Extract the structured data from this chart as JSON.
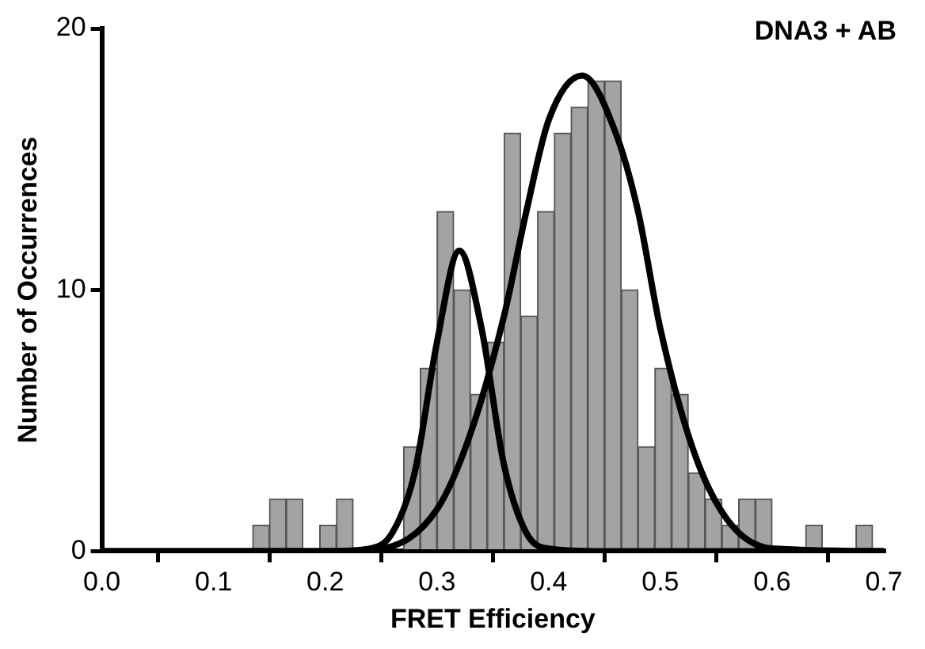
{
  "chart_data": {
    "type": "histogram",
    "xlabel": "FRET Efficiency",
    "ylabel": "Number of Occurrences",
    "annotations": [
      "DNA3 + AB"
    ],
    "bins": [
      0.135,
      0.15,
      0.165,
      0.18,
      0.195,
      0.21,
      0.225,
      0.24,
      0.255,
      0.27,
      0.285,
      0.3,
      0.315,
      0.33,
      0.345,
      0.36,
      0.375,
      0.39,
      0.405,
      0.42,
      0.435,
      0.45,
      0.465,
      0.48,
      0.495,
      0.51,
      0.525,
      0.54,
      0.555,
      0.57,
      0.585,
      0.6,
      0.615,
      0.63,
      0.645,
      0.66,
      0.675,
      0.69
    ],
    "values": [
      1,
      2,
      2,
      0,
      1,
      2,
      0,
      0,
      0,
      4,
      7,
      13,
      10,
      6,
      8,
      16,
      9,
      13,
      16,
      17,
      18,
      18,
      10,
      4,
      7,
      6,
      3,
      2,
      1,
      2,
      2,
      0,
      0,
      1,
      0,
      0,
      1
    ],
    "color": "#a3a3a3",
    "series": [
      {
        "type": "line",
        "color": "#000000",
        "x": [
          0,
          0.2,
          0.24,
          0.26,
          0.28,
          0.3,
          0.32,
          0.34,
          0.36,
          0.38,
          0.4,
          0.45,
          0.7
        ],
        "values": [
          0,
          0,
          0.1,
          0.7,
          3,
          8,
          11.5,
          8.5,
          3.3,
          0.7,
          0.1,
          0,
          0
        ]
      },
      {
        "type": "line",
        "color": "#000000",
        "x": [
          0,
          0.2,
          0.25,
          0.3,
          0.33,
          0.36,
          0.38,
          0.4,
          0.43,
          0.46,
          0.48,
          0.5,
          0.53,
          0.56,
          0.6,
          0.7
        ],
        "values": [
          0,
          0,
          0.1,
          1.6,
          4.5,
          9,
          13,
          16.5,
          18.2,
          16,
          13,
          8.5,
          3.8,
          1.2,
          0.1,
          0
        ]
      }
    ],
    "xlim": [
      0,
      0.7
    ],
    "xticks": [
      {
        "value": 0,
        "label": "0.0"
      },
      {
        "value": 0.1,
        "label": "0.1"
      },
      {
        "value": 0.2,
        "label": "0.2"
      },
      {
        "value": 0.3,
        "label": "0.3"
      },
      {
        "value": 0.4,
        "label": "0.4"
      },
      {
        "value": 0.5,
        "label": "0.5"
      },
      {
        "value": 0.6,
        "label": "0.6"
      },
      {
        "value": 0.7,
        "label": "0.7"
      }
    ],
    "ylim": [
      0,
      20
    ],
    "yticks": [
      0,
      10,
      20
    ],
    "grid": false,
    "legend": false
  }
}
